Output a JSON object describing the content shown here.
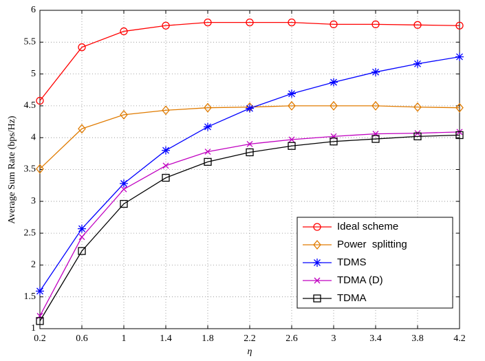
{
  "chart_data": {
    "type": "line",
    "x_label": "η",
    "y_label": "Average Sum Rate (bps/Hz)",
    "x": [
      0.2,
      0.6,
      1,
      1.4,
      1.8,
      2.2,
      2.6,
      3,
      3.4,
      3.8,
      4.2
    ],
    "xlim": [
      0.2,
      4.2
    ],
    "xticks": [
      0.2,
      0.6,
      1,
      1.4,
      1.8,
      2.2,
      2.6,
      3,
      3.4,
      3.8,
      4.2
    ],
    "ylim": [
      1,
      6
    ],
    "yticks": [
      1,
      1.5,
      2,
      2.5,
      3,
      3.5,
      4,
      4.5,
      5,
      5.5,
      6
    ],
    "grid": true,
    "legend": "lower right",
    "series": [
      {
        "name": "Ideal scheme",
        "color": "#ff0000",
        "marker": "circle",
        "values": [
          4.58,
          5.42,
          5.67,
          5.76,
          5.81,
          5.81,
          5.81,
          5.78,
          5.78,
          5.77,
          5.76
        ]
      },
      {
        "name": "Power  splitting",
        "color": "#e07b00",
        "marker": "diamond",
        "values": [
          3.51,
          4.14,
          4.36,
          4.43,
          4.47,
          4.48,
          4.5,
          4.5,
          4.5,
          4.48,
          4.47
        ]
      },
      {
        "name": "TDMS",
        "color": "#0000ff",
        "marker": "asterisk",
        "values": [
          1.59,
          2.57,
          3.28,
          3.8,
          4.17,
          4.46,
          4.69,
          4.87,
          5.03,
          5.16,
          5.27
        ]
      },
      {
        "name": "TDMA (D)",
        "color": "#c000c0",
        "marker": "x",
        "values": [
          1.2,
          2.44,
          3.19,
          3.56,
          3.78,
          3.9,
          3.97,
          4.02,
          4.06,
          4.07,
          4.09
        ]
      },
      {
        "name": "TDMA",
        "color": "#000000",
        "marker": "square",
        "values": [
          1.12,
          2.22,
          2.96,
          3.37,
          3.62,
          3.77,
          3.87,
          3.94,
          3.98,
          4.02,
          4.04
        ]
      }
    ]
  }
}
